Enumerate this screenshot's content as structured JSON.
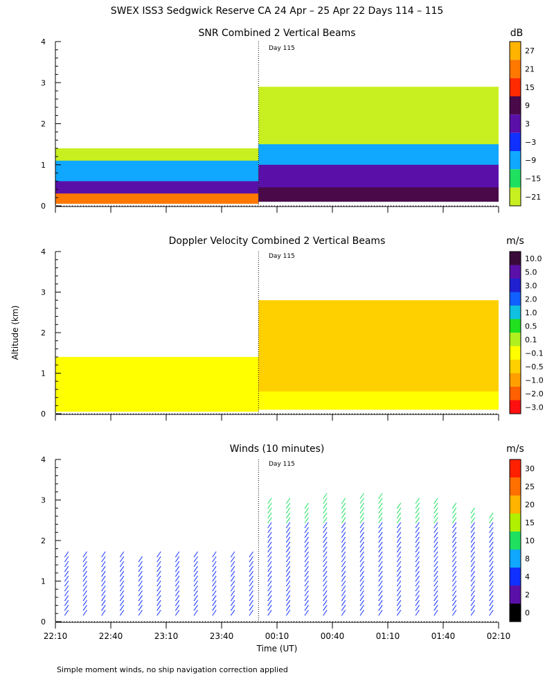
{
  "figure": {
    "title": "SWEX ISS3 Sedgwick Reserve CA  24 Apr – 25 Apr 22 Days 114 – 115",
    "ylabel": "Altitude (km)",
    "xlabel": "Time (UT)",
    "footnote": "Simple moment winds, no ship navigation correction applied",
    "day_marker": "Day 115",
    "x_ticks": [
      "22:10",
      "22:40",
      "23:10",
      "23:40",
      "00:10",
      "00:40",
      "01:10",
      "01:40",
      "02:10"
    ],
    "y_ticks": [
      "0",
      "1",
      "2",
      "3",
      "4"
    ]
  },
  "chart_data": [
    {
      "type": "heatmap",
      "title": "SNR Combined 2 Vertical Beams",
      "colorbar_label": "dB",
      "colorbar_ticks": [
        "27",
        "21",
        "15",
        "9",
        "3",
        "−3",
        "−9",
        "−15",
        "−21"
      ],
      "colors": [
        "#ffb400",
        "#ff7800",
        "#ff2a00",
        "#4a0a4a",
        "#5a10a8",
        "#1030ff",
        "#10a8ff",
        "#20e060",
        "#c8f020"
      ],
      "x_range_minutes": [
        0,
        240
      ],
      "ylim": [
        0,
        4
      ],
      "day_boundary_minutes": 110,
      "layers": [
        {
          "value_db": -21,
          "t0": 0,
          "t1": 110,
          "z0": 0.05,
          "z1": 1.4
        },
        {
          "value_db": -9,
          "t0": 0,
          "t1": 110,
          "z0": 0.05,
          "z1": 1.1
        },
        {
          "value_db": 3,
          "t0": 0,
          "t1": 110,
          "z0": 0.05,
          "z1": 0.6
        },
        {
          "value_db": 21,
          "t0": 0,
          "t1": 110,
          "z0": 0.05,
          "z1": 0.3
        },
        {
          "value_db": -21,
          "t0": 110,
          "t1": 240,
          "z0": 0.1,
          "z1": 2.9
        },
        {
          "value_db": -9,
          "t0": 110,
          "t1": 240,
          "z0": 0.1,
          "z1": 1.5
        },
        {
          "value_db": 3,
          "t0": 110,
          "t1": 240,
          "z0": 0.1,
          "z1": 1.0
        },
        {
          "value_db": 9,
          "t0": 110,
          "t1": 240,
          "z0": 0.1,
          "z1": 0.45
        }
      ]
    },
    {
      "type": "heatmap",
      "title": "Doppler Velocity Combined 2 Vertical Beams",
      "colorbar_label": "m/s",
      "colorbar_ticks": [
        "10.0",
        "5.0",
        "3.0",
        "2.0",
        "1.0",
        "0.5",
        "0.1",
        "−0.1",
        "−0.5",
        "−1.0",
        "−2.0",
        "−3.0"
      ],
      "colors": [
        "#3a0a3a",
        "#5a10a8",
        "#2020d0",
        "#1060ff",
        "#10c0e0",
        "#20e020",
        "#b0f020",
        "#ffff00",
        "#ffd000",
        "#ffa000",
        "#ff6000",
        "#ff1010"
      ],
      "x_range_minutes": [
        0,
        240
      ],
      "ylim": [
        0,
        4
      ],
      "day_boundary_minutes": 110,
      "layers": [
        {
          "value_ms": 0.0,
          "t0": 0,
          "t1": 110,
          "z0": 0.05,
          "z1": 1.4
        },
        {
          "value_ms": -0.5,
          "t0": 110,
          "t1": 240,
          "z0": 0.1,
          "z1": 2.8
        },
        {
          "value_ms": 0.0,
          "t0": 110,
          "t1": 240,
          "z0": 0.1,
          "z1": 0.55
        }
      ]
    },
    {
      "type": "scatter",
      "title": "Winds (10 minutes)",
      "colorbar_label": "m/s",
      "colorbar_ticks": [
        "30",
        "25",
        "20",
        "15",
        "10",
        "8",
        "4",
        "2",
        "0"
      ],
      "colors": [
        "#ff2000",
        "#ff7000",
        "#ffb400",
        "#b0f000",
        "#20e060",
        "#10a8ff",
        "#1030ff",
        "#5a10a8",
        "#000000"
      ],
      "x_range_minutes": [
        0,
        240
      ],
      "ylim": [
        0,
        4
      ],
      "day_boundary_minutes": 110,
      "profile_times_minutes": [
        5,
        15,
        25,
        35,
        45,
        55,
        65,
        75,
        85,
        95,
        105,
        115,
        125,
        135,
        145,
        155,
        165,
        175,
        185,
        195,
        205,
        215,
        225,
        235
      ],
      "profile_top_km": [
        1.6,
        1.6,
        1.6,
        1.6,
        1.5,
        1.6,
        1.6,
        1.6,
        1.6,
        1.6,
        1.6,
        3.0,
        3.0,
        2.9,
        3.1,
        3.0,
        3.1,
        3.1,
        2.9,
        3.0,
        3.0,
        2.9,
        2.7,
        2.6
      ],
      "typical_speed_ms": 4
    }
  ]
}
